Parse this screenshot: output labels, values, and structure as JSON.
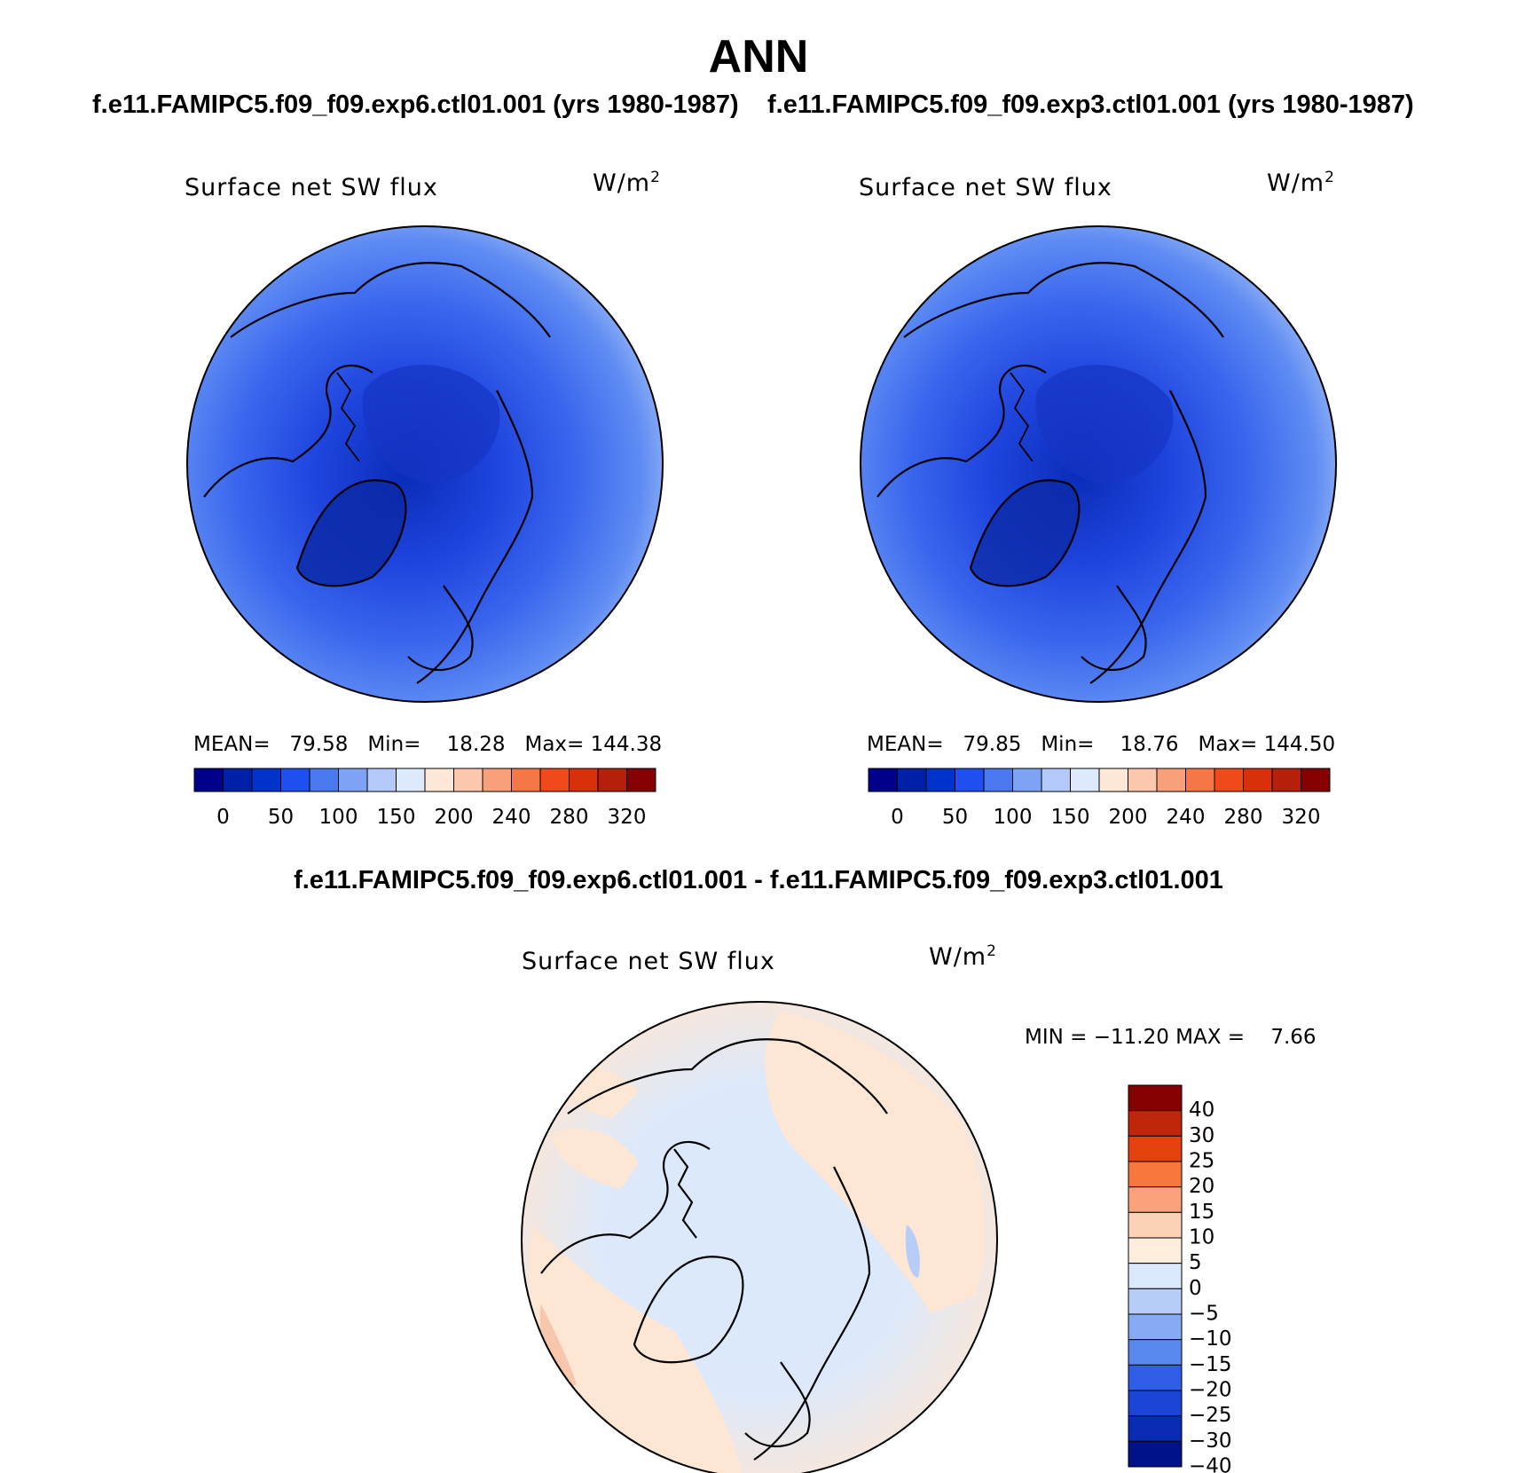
{
  "figure": {
    "title": "ANN",
    "run_left": "f.e11.FAMIPC5.f09_f09.exp6.ctl01.001 (yrs 1980-1987)",
    "run_right": "f.e11.FAMIPC5.f09_f09.exp3.ctl01.001 (yrs 1980-1987)",
    "diff_title": "f.e11.FAMIPC5.f09_f09.exp6.ctl01.001 - f.e11.FAMIPC5.f09_f09.exp3.ctl01.001"
  },
  "panels": [
    {
      "variable": "Surface net SW flux",
      "units": "W/m",
      "units_sup": "2",
      "mean_label": "MEAN=",
      "mean": "79.58",
      "min_label": "Min=",
      "min": "18.28",
      "max_label": "Max=",
      "max": "144.38"
    },
    {
      "variable": "Surface net SW flux",
      "units": "W/m",
      "units_sup": "2",
      "mean_label": "MEAN=",
      "mean": "79.85",
      "min_label": "Min=",
      "min": "18.76",
      "max_label": "Max=",
      "max": "144.50"
    },
    {
      "variable": "Surface net SW flux",
      "units": "W/m",
      "units_sup": "2",
      "minmax_text": "MIN = −11.20 MAX =    7.66"
    }
  ],
  "colorbar_main": {
    "colors": [
      "#00008b",
      "#0020a8",
      "#0033cc",
      "#1f4ff0",
      "#4a78f0",
      "#7ea3f5",
      "#b3c9f9",
      "#dceafc",
      "#fde8d8",
      "#fbc8ae",
      "#f8a07a",
      "#f67645",
      "#f04a1a",
      "#d9300c",
      "#b4200a",
      "#850000"
    ],
    "tick_labels": [
      "0",
      "50",
      "100",
      "150",
      "200",
      "240",
      "280",
      "320"
    ]
  },
  "colorbar_diff": {
    "colors": [
      "#850000",
      "#c0260a",
      "#e6420f",
      "#f8773d",
      "#fba27a",
      "#fdd0b8",
      "#fdeedc",
      "#d9e9fb",
      "#b6cdf8",
      "#86aaf4",
      "#5a88ef",
      "#2f5ee6",
      "#1a45d6",
      "#0a2cb4",
      "#00128a"
    ],
    "tick_labels": [
      "40",
      "30",
      "25",
      "20",
      "15",
      "10",
      "5",
      "0",
      "−5",
      "−10",
      "−15",
      "−20",
      "−25",
      "−30",
      "−40"
    ]
  }
}
